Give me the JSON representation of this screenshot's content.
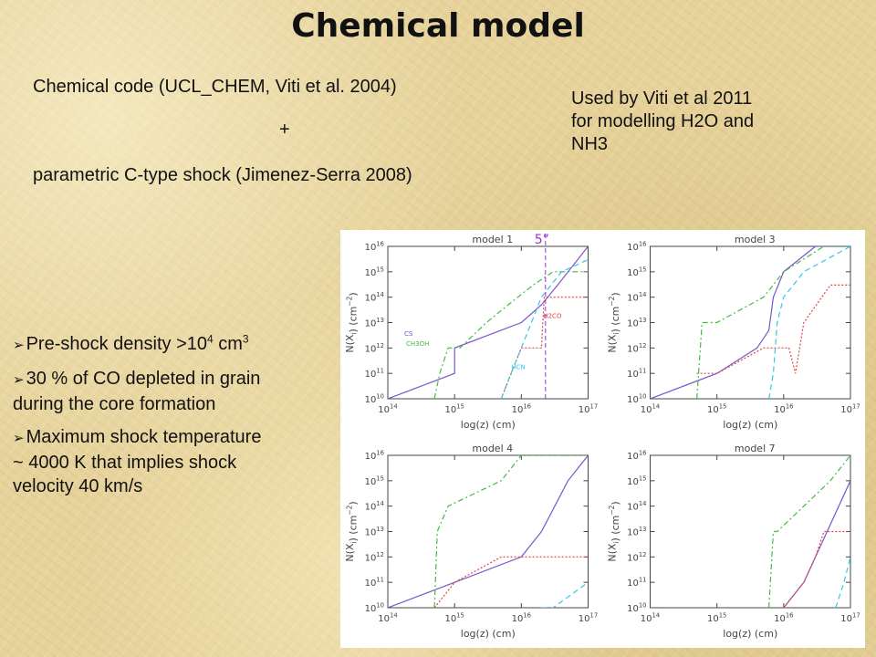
{
  "slide": {
    "title": "Chemical model",
    "code_line": "Chemical code (UCL_CHEM, Viti et al. 2004)",
    "plus": "+",
    "shock_line": "parametric C-type shock (Jimenez-Serra 2008)",
    "side_note": [
      "Used by Viti et al 2011",
      "for modelling H2O and",
      "NH3"
    ],
    "bullets": [
      {
        "pre": "Pre-shock density >10",
        "sup": "4",
        "post": " cm",
        "sup2": "3"
      },
      {
        "lines": [
          "30 % of CO depleted in grain",
          "during the core formation"
        ]
      },
      {
        "lines": [
          "Maximum shock temperature",
          "~ 4000 K that implies shock",
          "velocity 40 km/s"
        ]
      }
    ]
  },
  "figure": {
    "marker_label": "5”",
    "colors": {
      "axes": "#444444",
      "cs": "#7a55cc",
      "ch3oh": "#44bb44",
      "h2co": "#dd4444",
      "hcn": "#33c8e8",
      "marker": "#9933cc"
    },
    "panels": [
      {
        "title": "model 1",
        "curve_labels": [
          "CS",
          "CH3OH",
          "H2CO",
          "HCN"
        ]
      },
      {
        "title": "model 3",
        "curve_labels": []
      },
      {
        "title": "model 4",
        "curve_labels": []
      },
      {
        "title": "model 7",
        "curve_labels": []
      }
    ],
    "y_tick_labels": [
      "10",
      "10",
      "10",
      "10",
      "10",
      "10",
      "10"
    ],
    "y_tick_exps": [
      "10",
      "11",
      "12",
      "13",
      "14",
      "15",
      "16"
    ],
    "x_tick_labels": [
      "10",
      "10",
      "10",
      "10"
    ],
    "x_tick_exps": [
      "14",
      "15",
      "16",
      "17"
    ],
    "xlabel": "log(z) (cm)",
    "ylabel": "N(X",
    "ylabel_sub": "i",
    "ylabel_tail": ") (cm",
    "ylabel_exp": "−2",
    "ylabel_end": ")"
  },
  "chart_data": {
    "type": "line",
    "xlabel": "log(z) (cm)",
    "ylabel": "N(Xi) (cm-2)",
    "xscale": "log",
    "yscale": "log",
    "xlim": [
      100000000000000.0,
      1e+17
    ],
    "ylim": [
      10000000000.0,
      1e+16
    ],
    "panels": [
      {
        "title": "model 1",
        "series": [
          {
            "name": "CS",
            "x": [
              100000000000000.0,
              1000000000000000.0,
              1000000000000000.0,
              1e+16,
              2e+16,
              3.5e+16,
              1e+17
            ],
            "y": [
              10000000000.0,
              100000000000.0,
              1000000000000.0,
              10000000000000.0,
              50000000000000.0,
              300000000000000.0,
              1e+16
            ]
          },
          {
            "name": "CH3OH",
            "x": [
              500000000000000.0,
              600000000000000.0,
              800000000000000.0,
              1200000000000000.0,
              3000000000000000.0,
              5000000000000000.0,
              1.5e+16,
              3e+16,
              1e+17
            ],
            "y": [
              10000000000.0,
              100000000000.0,
              1000000000000.0,
              1000000000000.0,
              10000000000000.0,
              30000000000000.0,
              300000000000000.0,
              1000000000000000.0,
              1000000000000000.0
            ]
          },
          {
            "name": "H2CO",
            "x": [
              5000000000000000.0,
              1e+16,
              2e+16,
              2.2e+16,
              3e+16,
              1e+17
            ],
            "y": [
              10000000000.0,
              1000000000000.0,
              1000000000000.0,
              100000000000000.0,
              100000000000000.0,
              100000000000000.0
            ]
          },
          {
            "name": "HCN",
            "x": [
              5000000000000000.0,
              7000000000000000.0,
              1e+16,
              2e+16,
              4e+16,
              1e+17
            ],
            "y": [
              10000000000.0,
              100000000000.0,
              1000000000000.0,
              100000000000000.0,
              1000000000000000.0,
              3000000000000000.0
            ]
          }
        ]
      },
      {
        "title": "model 3",
        "series": [
          {
            "x": [
              100000000000000.0,
              1000000000000000.0,
              4000000000000000.0,
              6000000000000000.0,
              7000000000000000.0,
              1e+16,
              3e+16,
              1e+17
            ],
            "y": [
              10000000000.0,
              100000000000.0,
              1000000000000.0,
              5000000000000.0,
              100000000000000.0,
              1000000000000000.0,
              1e+16,
              1e+16
            ]
          },
          {
            "x": [
              500000000000000.0,
              600000000000000.0,
              1000000000000000.0,
              5000000000000000.0,
              1e+16,
              4e+16,
              1e+17
            ],
            "y": [
              10000000000.0,
              10000000000000.0,
              10000000000000.0,
              100000000000000.0,
              1000000000000000.0,
              1e+16,
              1e+16
            ]
          },
          {
            "x": [
              500000000000000.0,
              1000000000000000.0,
              5000000000000000.0,
              1.2e+16,
              1.5e+16,
              2e+16,
              5e+16,
              1e+17
            ],
            "y": [
              100000000000.0,
              100000000000.0,
              1000000000000.0,
              1000000000000.0,
              100000000000.0,
              10000000000000.0,
              300000000000000.0,
              300000000000000.0
            ]
          },
          {
            "x": [
              6000000000000000.0,
              7000000000000000.0,
              8000000000000000.0,
              1e+16,
              2e+16,
              1e+17
            ],
            "y": [
              10000000000.0,
              100000000000.0,
              10000000000000.0,
              100000000000000.0,
              1000000000000000.0,
              1e+16
            ]
          }
        ]
      },
      {
        "title": "model 4",
        "series": [
          {
            "x": [
              100000000000000.0,
              1000000000000000.0,
              1e+16,
              2e+16,
              5e+16,
              1e+17
            ],
            "y": [
              10000000000.0,
              100000000000.0,
              1000000000000.0,
              10000000000000.0,
              1000000000000000.0,
              1e+16
            ]
          },
          {
            "x": [
              500000000000000.0,
              550000000000000.0,
              800000000000000.0,
              5000000000000000.0,
              1e+16,
              1e+17
            ],
            "y": [
              10000000000.0,
              10000000000000.0,
              100000000000000.0,
              1000000000000000.0,
              1e+16,
              1e+16
            ]
          },
          {
            "x": [
              500000000000000.0,
              1000000000000000.0,
              5000000000000000.0,
              1e+16,
              1.5e+16,
              2e+16,
              1e+17
            ],
            "y": [
              10000000000.0,
              100000000000.0,
              1000000000000.0,
              1000000000000.0,
              1000000000000.0,
              1000000000000.0,
              1000000000000.0
            ]
          },
          {
            "x": [
              2e+16,
              3e+16,
              1e+17
            ],
            "y": [
              10000000000.0,
              10000000000.0,
              100000000000.0
            ]
          }
        ]
      },
      {
        "title": "model 7",
        "series": [
          {
            "x": [
              1e+16,
              2e+16,
              3e+16,
              1e+17
            ],
            "y": [
              10000000000.0,
              100000000000.0,
              1000000000000.0,
              1000000000000000.0
            ]
          },
          {
            "x": [
              6000000000000000.0,
              7000000000000000.0,
              8000000000000000.0,
              2e+16,
              5e+16,
              1e+17
            ],
            "y": [
              10000000000.0,
              10000000000000.0,
              10000000000000.0,
              100000000000000.0,
              1000000000000000.0,
              1e+16
            ]
          },
          {
            "x": [
              1e+16,
              2e+16,
              3e+16,
              4e+16,
              1e+17
            ],
            "y": [
              10000000000.0,
              100000000000.0,
              1000000000000.0,
              10000000000000.0,
              10000000000000.0
            ]
          },
          {
            "x": [
              6e+16,
              8e+16,
              1e+17
            ],
            "y": [
              10000000000.0,
              100000000000.0,
              1000000000000.0
            ]
          }
        ]
      }
    ]
  }
}
